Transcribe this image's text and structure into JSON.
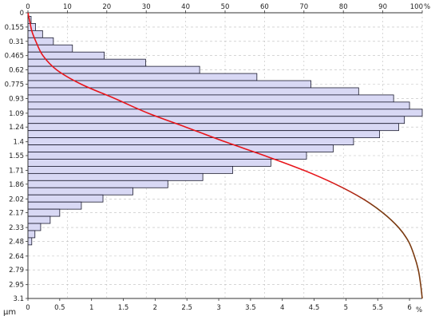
{
  "chart_data": {
    "type": "bar",
    "orientation": "horizontal",
    "colors": {
      "bar_fill": "#d8d8f4",
      "bar_stroke": "#1a1a2e",
      "cumulative_line": "#e8141a",
      "cumulative_tail": "#7a3a10",
      "grid": "#bdbdbd",
      "axis": "#333333"
    },
    "y_axis": {
      "label": "μm",
      "range": [
        0,
        3.1
      ],
      "tick_values": [
        0,
        0.155,
        0.31,
        0.465,
        0.62,
        0.775,
        0.93,
        1.09,
        1.24,
        1.4,
        1.55,
        1.71,
        1.86,
        2.02,
        2.17,
        2.33,
        2.48,
        2.64,
        2.79,
        2.95,
        3.1
      ],
      "tick_labels": [
        "0",
        "0.155",
        "0.31",
        "0.465",
        "0.62",
        "0.775",
        "0.93",
        "1.09",
        "1.24",
        "1.4",
        "1.55",
        "1.71",
        "1.86",
        "2.02",
        "2.17",
        "2.33",
        "2.48",
        "2.64",
        "2.79",
        "2.95",
        "3.1"
      ]
    },
    "x_bottom": {
      "label": "%",
      "range": [
        0,
        6.2
      ],
      "tick_values": [
        0,
        0.5,
        1,
        1.5,
        2,
        2.5,
        3,
        3.5,
        4,
        4.5,
        5,
        5.5,
        6
      ],
      "tick_labels": [
        "0",
        "0.5",
        "1",
        "1.5",
        "2",
        "2.5",
        "3",
        "3.5",
        "4",
        "4.5",
        "5",
        "5.5",
        "6"
      ]
    },
    "x_top": {
      "label": "%",
      "range": [
        0,
        100
      ],
      "tick_values": [
        0,
        10,
        20,
        30,
        40,
        50,
        60,
        70,
        80,
        90,
        100
      ],
      "tick_labels": [
        "0",
        "10",
        "20",
        "30",
        "40",
        "50",
        "60",
        "70",
        "80",
        "90",
        "100"
      ]
    },
    "grid": true,
    "bin_width": 0.0775,
    "bins": [
      {
        "y": 0.0775,
        "value": 0.05
      },
      {
        "y": 0.155,
        "value": 0.12
      },
      {
        "y": 0.2325,
        "value": 0.23
      },
      {
        "y": 0.31,
        "value": 0.4
      },
      {
        "y": 0.3875,
        "value": 0.7
      },
      {
        "y": 0.465,
        "value": 1.2
      },
      {
        "y": 0.5425,
        "value": 1.85
      },
      {
        "y": 0.62,
        "value": 2.7
      },
      {
        "y": 0.6975,
        "value": 3.6
      },
      {
        "y": 0.775,
        "value": 4.45
      },
      {
        "y": 0.8525,
        "value": 5.2
      },
      {
        "y": 0.93,
        "value": 5.75
      },
      {
        "y": 1.0075,
        "value": 6.0
      },
      {
        "y": 1.085,
        "value": 6.2
      },
      {
        "y": 1.1625,
        "value": 5.92
      },
      {
        "y": 1.24,
        "value": 5.83
      },
      {
        "y": 1.3175,
        "value": 5.53
      },
      {
        "y": 1.395,
        "value": 5.12
      },
      {
        "y": 1.4725,
        "value": 4.8
      },
      {
        "y": 1.55,
        "value": 4.38
      },
      {
        "y": 1.6275,
        "value": 3.82
      },
      {
        "y": 1.705,
        "value": 3.22
      },
      {
        "y": 1.7825,
        "value": 2.75
      },
      {
        "y": 1.86,
        "value": 2.2
      },
      {
        "y": 1.9375,
        "value": 1.65
      },
      {
        "y": 2.015,
        "value": 1.18
      },
      {
        "y": 2.0925,
        "value": 0.84
      },
      {
        "y": 2.17,
        "value": 0.5
      },
      {
        "y": 2.2475,
        "value": 0.35
      },
      {
        "y": 2.325,
        "value": 0.2
      },
      {
        "y": 2.4025,
        "value": 0.11
      },
      {
        "y": 2.48,
        "value": 0.06
      }
    ],
    "cumulative": {
      "axis": "x_top",
      "points": [
        [
          0,
          0
        ],
        [
          0.1,
          0.5
        ],
        [
          0.2,
          1.0
        ],
        [
          0.31,
          2.0
        ],
        [
          0.465,
          3.8
        ],
        [
          0.62,
          7.3
        ],
        [
          0.775,
          13.5
        ],
        [
          0.93,
          22.0
        ],
        [
          1.09,
          30.5
        ],
        [
          1.24,
          40.0
        ],
        [
          1.4,
          50.0
        ],
        [
          1.55,
          60.0
        ],
        [
          1.71,
          70.0
        ],
        [
          1.86,
          78.0
        ],
        [
          2.02,
          85.0
        ],
        [
          2.17,
          90.0
        ],
        [
          2.33,
          94.0
        ],
        [
          2.48,
          96.5
        ],
        [
          2.64,
          98.0
        ],
        [
          2.79,
          99.0
        ],
        [
          2.95,
          99.6
        ],
        [
          3.1,
          100
        ]
      ]
    }
  }
}
